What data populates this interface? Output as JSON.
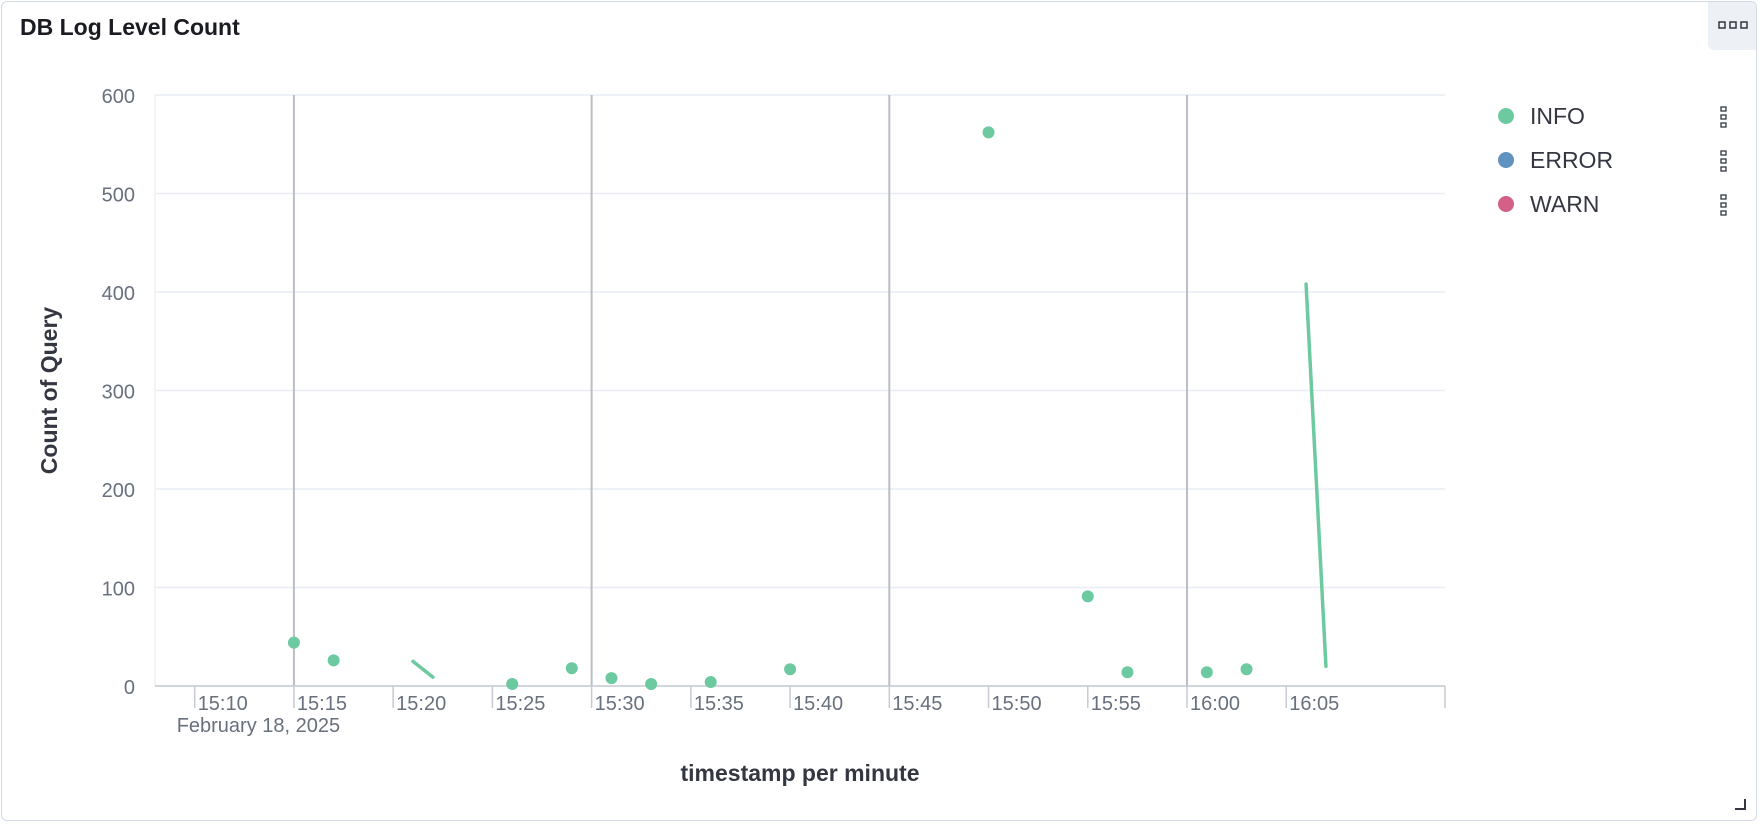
{
  "panel": {
    "title": "DB Log Level Count"
  },
  "chart_data": {
    "type": "scatter",
    "title": "DB Log Level Count",
    "xlabel": "timestamp per minute",
    "ylabel": "Count of Query",
    "date_label": "February 18, 2025",
    "xlim": [
      "15:08",
      "16:13"
    ],
    "ylim": [
      0,
      600
    ],
    "y_ticks": [
      0,
      100,
      200,
      300,
      400,
      500,
      600
    ],
    "x_ticks": [
      "15:10",
      "15:15",
      "15:20",
      "15:25",
      "15:30",
      "15:35",
      "15:40",
      "15:45",
      "15:50",
      "15:55",
      "16:00",
      "16:05"
    ],
    "grid": true,
    "legend_position": "right",
    "series": [
      {
        "name": "INFO",
        "color": "#6dcaa0",
        "points": [
          {
            "x": "15:15",
            "y": 44
          },
          {
            "x": "15:17",
            "y": 26
          },
          {
            "x": "15:26",
            "y": 2
          },
          {
            "x": "15:29",
            "y": 18
          },
          {
            "x": "15:31",
            "y": 8
          },
          {
            "x": "15:33",
            "y": 2
          },
          {
            "x": "15:36",
            "y": 4
          },
          {
            "x": "15:40",
            "y": 17
          },
          {
            "x": "15:50",
            "y": 562
          },
          {
            "x": "15:55",
            "y": 91
          },
          {
            "x": "15:57",
            "y": 14
          },
          {
            "x": "16:01",
            "y": 14
          },
          {
            "x": "16:03",
            "y": 17
          }
        ],
        "segments": [
          [
            {
              "x": "15:21",
              "y": 25
            },
            {
              "x": "15:22",
              "y": 9
            }
          ],
          [
            {
              "x": "16:06",
              "y": 408
            },
            {
              "x": "16:07",
              "y": 20
            }
          ]
        ]
      },
      {
        "name": "ERROR",
        "color": "#6092c0",
        "points": [],
        "segments": []
      },
      {
        "name": "WARN",
        "color": "#d36086",
        "points": [],
        "segments": []
      }
    ]
  }
}
